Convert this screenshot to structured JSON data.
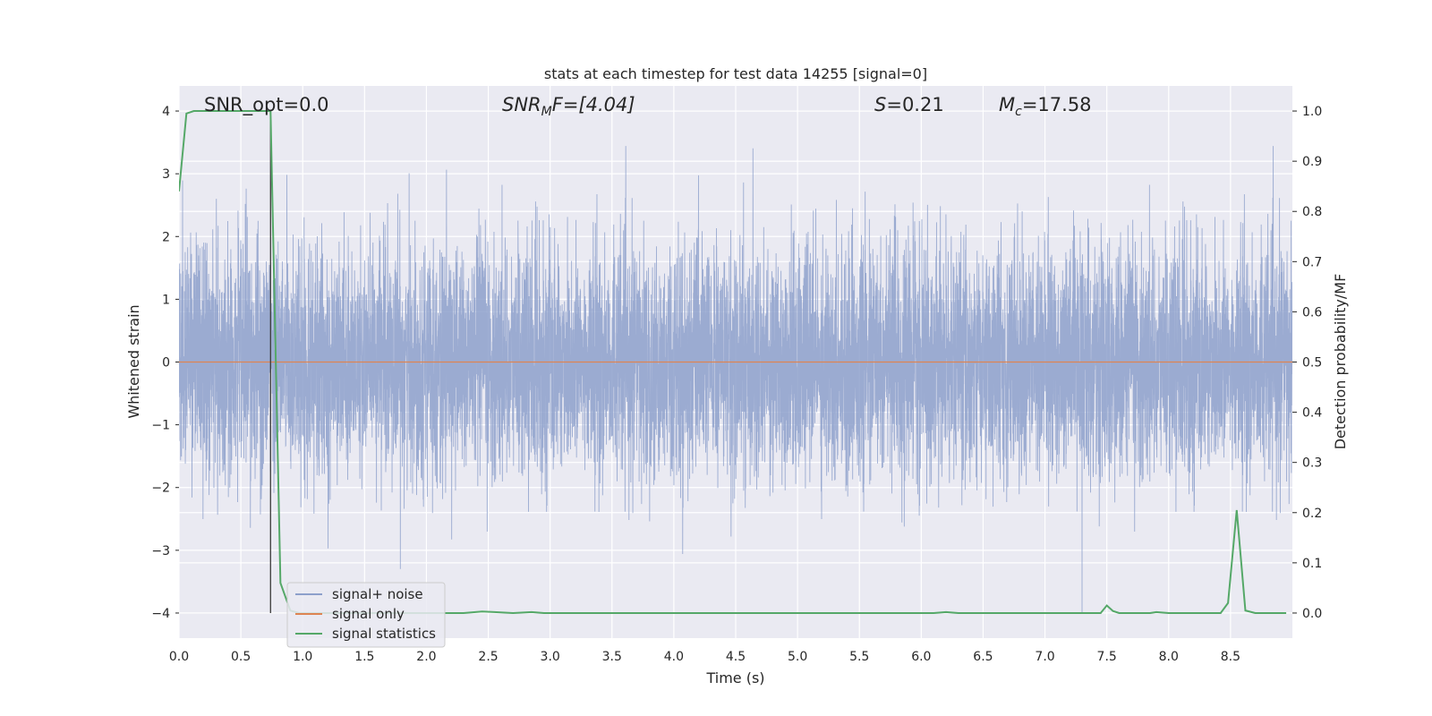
{
  "chart_data": {
    "type": "line",
    "title": "stats at each timestep for test data 14255 [signal=0]",
    "xlabel": "Time (s)",
    "ylabel": "Whitened strain",
    "ylabel_right": "Detection probability/MF",
    "xlim": [
      0.0,
      9.0
    ],
    "ylim": [
      -4.4,
      4.4
    ],
    "ylim_right": [
      -0.05,
      1.05
    ],
    "x_ticks": [
      "0.0",
      "0.5",
      "1.0",
      "1.5",
      "2.0",
      "2.5",
      "3.0",
      "3.5",
      "4.0",
      "4.5",
      "5.0",
      "5.5",
      "6.0",
      "6.5",
      "7.0",
      "7.5",
      "8.0",
      "8.5"
    ],
    "y_ticks": [
      "4",
      "3",
      "2",
      "1",
      "0",
      "−1",
      "−2",
      "−3",
      "−4"
    ],
    "y_ticks_right": [
      "1.0",
      "0.9",
      "0.8",
      "0.7",
      "0.6",
      "0.5",
      "0.4",
      "0.3",
      "0.2",
      "0.1",
      "0.0"
    ],
    "grid": true,
    "legend_position": "lower-left",
    "annotations": {
      "snr_opt": "SNR_opt=0.0",
      "snr_mf_sym": "SNR",
      "snr_mf_sub": "M",
      "snr_mf_rest": "F=[4.04]",
      "s_sym": "S",
      "s_rest": "=0.21",
      "mc_sym": "M",
      "mc_sub": "c",
      "mc_rest": "=17.58"
    },
    "marker_time": 0.74,
    "series": [
      {
        "name": "signal+ noise",
        "color": "#8da0cb",
        "axis": "left",
        "kind": "noise",
        "approx_range": [
          -4.0,
          3.5
        ]
      },
      {
        "name": "signal only",
        "color": "#dd8452",
        "axis": "left",
        "kind": "flat",
        "values": [
          0.0
        ]
      },
      {
        "name": "signal statistics",
        "color": "#55a868",
        "axis": "right",
        "x": [
          0.0,
          0.06,
          0.12,
          0.74,
          0.82,
          0.9,
          0.97,
          1.5,
          2.3,
          2.45,
          2.55,
          2.7,
          2.85,
          2.95,
          3.5,
          4.85,
          5.2,
          6.1,
          6.2,
          6.3,
          7.45,
          7.5,
          7.55,
          7.6,
          7.85,
          7.9,
          8.0,
          8.42,
          8.48,
          8.55,
          8.62,
          8.7,
          8.95
        ],
        "values": [
          0.84,
          0.995,
          1.0,
          1.0,
          0.06,
          0.005,
          0.0,
          0.0,
          0.0,
          0.003,
          0.002,
          0.0,
          0.002,
          0.0,
          0.0,
          0.0,
          0.0,
          0.0,
          0.002,
          0.0,
          0.0,
          0.015,
          0.004,
          0.0,
          0.0,
          0.002,
          0.0,
          0.0,
          0.02,
          0.205,
          0.005,
          0.0,
          0.0
        ]
      }
    ]
  }
}
